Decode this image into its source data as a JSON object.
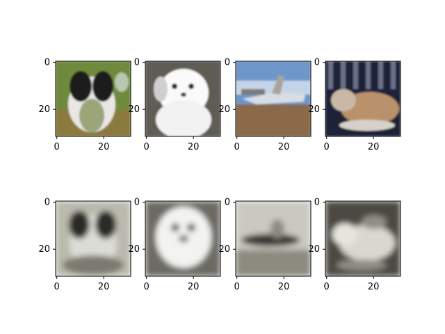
{
  "figure": {
    "background": "#ffffff",
    "tick_color": "#000000",
    "rows": [
      {
        "name": "original",
        "panels": [
          {
            "id": "dog-1",
            "subject": "black-and-white dog on grass",
            "palette": {
              "bg": "#6f8a3e",
              "accent": "#1b1b1b",
              "light": "#e9e7e4",
              "mid": "#9aa57a"
            }
          },
          {
            "id": "dog-2",
            "subject": "white puppy",
            "palette": {
              "bg": "#5e5b55",
              "accent": "#f2f2f2",
              "light": "#fafafa",
              "mid": "#cfcfcf"
            }
          },
          {
            "id": "airplane",
            "subject": "aircraft on airfield",
            "palette": {
              "bg": "#6e96c9",
              "accent": "#8a6a4a",
              "light": "#d8dde4",
              "mid": "#a9a39b"
            }
          },
          {
            "id": "cat",
            "subject": "tabby cat on dark blanket",
            "palette": {
              "bg": "#1d2438",
              "accent": "#b9916b",
              "light": "#c9b8a6",
              "mid": "#6b6f88"
            }
          }
        ]
      },
      {
        "name": "reconstruction",
        "panels": [
          {
            "id": "dog-1-recon",
            "subject": "blurry grayscale reconstruction",
            "palette": {
              "bg": "#b9b9ad",
              "accent": "#2c2a26",
              "light": "#dcdcd6",
              "mid": "#7c7a70"
            }
          },
          {
            "id": "dog-2-recon",
            "subject": "blurry grayscale reconstruction",
            "palette": {
              "bg": "#6c6a63",
              "accent": "#eeeeea",
              "light": "#f3f3f0",
              "mid": "#b6b5ad"
            }
          },
          {
            "id": "airplane-recon",
            "subject": "blurry grayscale reconstruction",
            "palette": {
              "bg": "#c9c9bf",
              "accent": "#3a3932",
              "light": "#e3e3dc",
              "mid": "#8d8b80"
            }
          },
          {
            "id": "cat-recon",
            "subject": "blurry grayscale reconstruction",
            "palette": {
              "bg": "#4b4a43",
              "accent": "#d9d8cf",
              "light": "#e7e6de",
              "mid": "#8f8e84"
            }
          }
        ]
      }
    ],
    "x_ticks": [
      "0",
      "20"
    ],
    "y_ticks": [
      "0",
      "20"
    ]
  }
}
